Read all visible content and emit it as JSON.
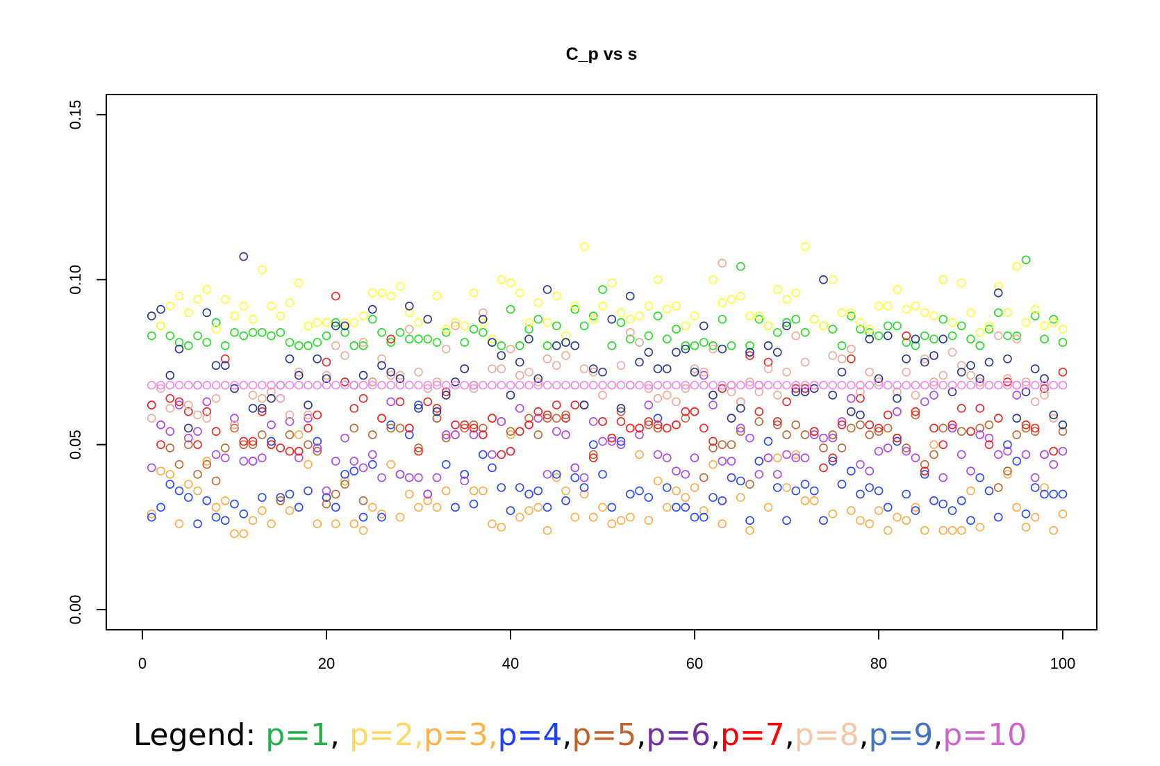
{
  "chart_data": {
    "type": "scatter",
    "title": "C_p vs s",
    "xlabel": "",
    "ylabel": "",
    "xlim": [
      1,
      100
    ],
    "ylim": [
      0.0,
      0.15
    ],
    "x_ticks": [
      0,
      20,
      40,
      60,
      80,
      100
    ],
    "x_tick_labels": [
      "0",
      "20",
      "40",
      "60",
      "80",
      "100"
    ],
    "y_ticks": [
      0.0,
      0.05,
      0.1,
      0.15
    ],
    "y_tick_labels": [
      "0.00",
      "0.05",
      "0.10",
      "0.15"
    ],
    "marker": "open-circle",
    "grid": false,
    "legend_placement": "bottom",
    "series": [
      {
        "name": "p=1",
        "color": "#22dd22",
        "legend_color": "#21b04b",
        "values": [
          0.083,
          0.086,
          0.083,
          0.081,
          0.08,
          0.083,
          0.081,
          0.087,
          0.08,
          0.084,
          0.083,
          0.084,
          0.084,
          0.083,
          0.084,
          0.081,
          0.08,
          0.08,
          0.081,
          0.083,
          0.087,
          0.084,
          0.08,
          0.08,
          0.088,
          0.084,
          0.081,
          0.084,
          0.082,
          0.082,
          0.082,
          0.081,
          0.084,
          0.087,
          0.081,
          0.085,
          0.084,
          0.081,
          0.08,
          0.091,
          0.08,
          0.085,
          0.088,
          0.08,
          0.086,
          0.081,
          0.091,
          0.086,
          0.089,
          0.097,
          0.08,
          0.087,
          0.082,
          0.081,
          0.083,
          0.089,
          0.082,
          0.085,
          0.08,
          0.08,
          0.081,
          0.08,
          0.088,
          0.08,
          0.104,
          0.08,
          0.088,
          0.086,
          0.084,
          0.087,
          0.088,
          0.084,
          0.088,
          0.086,
          0.085,
          0.08,
          0.089,
          0.085,
          0.084,
          0.083,
          0.086,
          0.086,
          0.081,
          0.08,
          0.083,
          0.082,
          0.088,
          0.083,
          0.086,
          0.082,
          0.08,
          0.085,
          0.09,
          0.083,
          0.083,
          0.106,
          0.089,
          0.082,
          0.088,
          0.081
        ]
      },
      {
        "name": "p=2",
        "color": "#ffff33",
        "legend_color": "#ffd966",
        "values": [
          0.089,
          0.086,
          0.092,
          0.095,
          0.09,
          0.094,
          0.097,
          0.085,
          0.094,
          0.089,
          0.092,
          0.088,
          0.103,
          0.092,
          0.089,
          0.093,
          0.099,
          0.086,
          0.087,
          0.087,
          0.086,
          0.087,
          0.087,
          0.089,
          0.096,
          0.096,
          0.095,
          0.098,
          0.09,
          0.087,
          0.088,
          0.095,
          0.085,
          0.087,
          0.086,
          0.096,
          0.087,
          0.082,
          0.1,
          0.099,
          0.096,
          0.087,
          0.093,
          0.087,
          0.095,
          0.083,
          0.092,
          0.11,
          0.088,
          0.092,
          0.099,
          0.09,
          0.088,
          0.089,
          0.092,
          0.1,
          0.091,
          0.092,
          0.086,
          0.089,
          0.086,
          0.1,
          0.093,
          0.094,
          0.095,
          0.089,
          0.089,
          0.086,
          0.097,
          0.094,
          0.096,
          0.11,
          0.088,
          0.086,
          0.1,
          0.09,
          0.09,
          0.087,
          0.085,
          0.092,
          0.092,
          0.097,
          0.091,
          0.092,
          0.09,
          0.089,
          0.1,
          0.087,
          0.099,
          0.09,
          0.084,
          0.086,
          0.098,
          0.09,
          0.104,
          0.087,
          0.091,
          0.086,
          0.087,
          0.085
        ]
      },
      {
        "name": "p=3",
        "color": "#ffaa44",
        "legend_color": "#ffb347",
        "values": [
          0.029,
          0.042,
          0.041,
          0.026,
          0.038,
          0.036,
          0.045,
          0.031,
          0.033,
          0.023,
          0.023,
          0.027,
          0.03,
          0.026,
          0.034,
          0.03,
          0.053,
          0.044,
          0.026,
          0.034,
          0.026,
          0.039,
          0.026,
          0.024,
          0.031,
          0.029,
          0.044,
          0.028,
          0.035,
          0.031,
          0.033,
          0.031,
          0.036,
          0.031,
          0.041,
          0.036,
          0.036,
          0.026,
          0.025,
          0.053,
          0.028,
          0.03,
          0.031,
          0.024,
          0.04,
          0.036,
          0.028,
          0.035,
          0.028,
          0.031,
          0.026,
          0.027,
          0.028,
          0.047,
          0.027,
          0.039,
          0.031,
          0.036,
          0.034,
          0.037,
          0.03,
          0.044,
          0.026,
          0.04,
          0.034,
          0.024,
          0.045,
          0.031,
          0.046,
          0.037,
          0.047,
          0.033,
          0.033,
          0.027,
          0.029,
          0.038,
          0.03,
          0.027,
          0.026,
          0.03,
          0.024,
          0.028,
          0.027,
          0.031,
          0.024,
          0.05,
          0.024,
          0.024,
          0.024,
          0.036,
          0.025,
          0.036,
          0.037,
          0.041,
          0.031,
          0.025,
          0.028,
          0.037,
          0.024,
          0.029
        ]
      },
      {
        "name": "p=4",
        "color": "#2244ff",
        "legend_color": "#1f3fff",
        "values": [
          0.028,
          0.031,
          0.038,
          0.036,
          0.034,
          0.026,
          0.033,
          0.028,
          0.027,
          0.032,
          0.029,
          0.045,
          0.034,
          0.051,
          0.034,
          0.035,
          0.031,
          0.036,
          0.051,
          0.034,
          0.031,
          0.041,
          0.042,
          0.028,
          0.044,
          0.028,
          0.056,
          0.041,
          0.053,
          0.062,
          0.035,
          0.058,
          0.044,
          0.031,
          0.041,
          0.032,
          0.047,
          0.043,
          0.037,
          0.03,
          0.037,
          0.035,
          0.036,
          0.031,
          0.041,
          0.033,
          0.04,
          0.037,
          0.05,
          0.041,
          0.031,
          0.051,
          0.035,
          0.036,
          0.034,
          0.058,
          0.037,
          0.031,
          0.031,
          0.028,
          0.028,
          0.034,
          0.033,
          0.04,
          0.039,
          0.027,
          0.045,
          0.051,
          0.037,
          0.027,
          0.036,
          0.038,
          0.036,
          0.027,
          0.045,
          0.038,
          0.042,
          0.035,
          0.037,
          0.036,
          0.031,
          0.051,
          0.035,
          0.03,
          0.041,
          0.033,
          0.032,
          0.03,
          0.033,
          0.027,
          0.04,
          0.036,
          0.028,
          0.05,
          0.045,
          0.029,
          0.037,
          0.035,
          0.035,
          0.035
        ]
      },
      {
        "name": "p=5",
        "color": "#bb6633",
        "legend_color": "#c0622d",
        "values": [
          0.062,
          0.056,
          0.049,
          0.044,
          0.05,
          0.041,
          0.044,
          0.039,
          0.049,
          0.055,
          0.05,
          0.05,
          0.053,
          0.05,
          0.033,
          0.053,
          0.048,
          0.05,
          0.048,
          0.032,
          0.035,
          0.038,
          0.055,
          0.033,
          0.053,
          0.058,
          0.055,
          0.055,
          0.055,
          0.049,
          0.035,
          0.058,
          0.052,
          0.053,
          0.055,
          0.056,
          0.055,
          0.058,
          0.057,
          0.054,
          0.054,
          0.058,
          0.053,
          0.058,
          0.058,
          0.059,
          0.043,
          0.062,
          0.047,
          0.057,
          0.052,
          0.06,
          0.055,
          0.055,
          0.056,
          0.055,
          0.055,
          0.056,
          0.058,
          0.06,
          0.04,
          0.049,
          0.05,
          0.05,
          0.054,
          0.038,
          0.057,
          0.046,
          0.056,
          0.053,
          0.056,
          0.053,
          0.054,
          0.049,
          0.053,
          0.049,
          0.055,
          0.056,
          0.053,
          0.054,
          0.055,
          0.052,
          0.049,
          0.059,
          0.044,
          0.047,
          0.055,
          0.055,
          0.054,
          0.054,
          0.055,
          0.056,
          0.037,
          0.042,
          0.053,
          0.055,
          0.054,
          0.047,
          0.048,
          0.054
        ]
      },
      {
        "name": "p=6",
        "color": "#aa44ee",
        "legend_color": "#7030a0",
        "values": [
          0.043,
          0.056,
          0.054,
          0.062,
          0.052,
          0.054,
          0.063,
          0.047,
          0.046,
          0.058,
          0.045,
          0.045,
          0.046,
          0.056,
          0.064,
          0.057,
          0.046,
          0.058,
          0.049,
          0.036,
          0.045,
          0.052,
          0.045,
          0.043,
          0.047,
          0.04,
          0.063,
          0.041,
          0.04,
          0.04,
          0.035,
          0.04,
          0.053,
          0.053,
          0.039,
          0.053,
          0.053,
          0.047,
          0.057,
          0.048,
          0.061,
          0.056,
          0.058,
          0.041,
          0.054,
          0.053,
          0.043,
          0.04,
          0.057,
          0.051,
          0.051,
          0.05,
          0.068,
          0.053,
          0.062,
          0.047,
          0.046,
          0.042,
          0.041,
          0.046,
          0.071,
          0.062,
          0.045,
          0.045,
          0.055,
          0.052,
          0.041,
          0.046,
          0.041,
          0.047,
          0.046,
          0.046,
          0.053,
          0.052,
          0.052,
          0.057,
          0.064,
          0.044,
          0.042,
          0.048,
          0.049,
          0.06,
          0.048,
          0.046,
          0.063,
          0.065,
          0.04,
          0.055,
          0.047,
          0.042,
          0.053,
          0.052,
          0.047,
          0.048,
          0.065,
          0.047,
          0.04,
          0.047,
          0.044,
          0.048
        ]
      },
      {
        "name": "p=7",
        "color": "#ee2222",
        "legend_color": "#ff0000",
        "values": [
          0.062,
          0.05,
          0.064,
          0.063,
          0.06,
          0.05,
          0.06,
          0.054,
          0.076,
          0.056,
          0.051,
          0.051,
          0.06,
          0.05,
          0.049,
          0.048,
          0.048,
          0.055,
          0.059,
          0.075,
          0.095,
          0.069,
          0.061,
          0.064,
          0.069,
          0.058,
          0.082,
          0.063,
          0.055,
          0.048,
          0.063,
          0.061,
          0.066,
          0.056,
          0.056,
          0.055,
          0.053,
          0.058,
          0.047,
          0.048,
          0.054,
          0.056,
          0.06,
          0.059,
          0.062,
          0.058,
          0.062,
          0.062,
          0.046,
          0.057,
          0.052,
          0.057,
          0.055,
          0.055,
          0.057,
          0.056,
          0.055,
          0.056,
          0.06,
          0.06,
          0.055,
          0.051,
          0.067,
          0.068,
          0.063,
          0.077,
          0.06,
          0.075,
          0.057,
          0.063,
          0.067,
          0.067,
          0.054,
          0.043,
          0.046,
          0.056,
          0.076,
          0.064,
          0.056,
          0.055,
          0.059,
          0.052,
          0.083,
          0.06,
          0.042,
          0.055,
          0.05,
          0.056,
          0.061,
          0.054,
          0.061,
          0.05,
          0.058,
          0.069,
          0.068,
          0.056,
          0.055,
          0.067,
          0.048,
          0.072
        ]
      },
      {
        "name": "p=8",
        "color": "#f0a898",
        "legend_color": "#f4c7a8",
        "values": [
          0.058,
          0.067,
          0.061,
          0.079,
          0.062,
          0.059,
          0.058,
          0.064,
          0.068,
          0.056,
          0.068,
          0.065,
          0.064,
          0.066,
          0.064,
          0.059,
          0.072,
          0.059,
          0.068,
          0.071,
          0.08,
          0.077,
          0.068,
          0.081,
          0.069,
          0.076,
          0.071,
          0.071,
          0.085,
          0.072,
          0.067,
          0.069,
          0.079,
          0.086,
          0.073,
          0.067,
          0.09,
          0.073,
          0.073,
          0.079,
          0.071,
          0.072,
          0.069,
          0.076,
          0.074,
          0.077,
          0.068,
          0.073,
          0.072,
          0.065,
          0.068,
          0.074,
          0.084,
          0.081,
          0.067,
          0.064,
          0.065,
          0.063,
          0.067,
          0.073,
          0.072,
          0.079,
          0.105,
          0.066,
          0.063,
          0.069,
          0.066,
          0.073,
          0.065,
          0.072,
          0.083,
          0.075,
          0.068,
          0.068,
          0.077,
          0.076,
          0.079,
          0.066,
          0.072,
          0.069,
          0.068,
          0.066,
          0.072,
          0.065,
          0.076,
          0.069,
          0.071,
          0.078,
          0.074,
          0.071,
          0.069,
          0.068,
          0.083,
          0.07,
          0.082,
          0.069,
          0.063,
          0.065,
          0.058,
          0.068
        ]
      },
      {
        "name": "p=9",
        "color": "#223388",
        "legend_color": "#4472c4",
        "values": [
          0.089,
          0.091,
          0.071,
          0.079,
          0.055,
          0.068,
          0.09,
          0.074,
          0.074,
          0.067,
          0.107,
          0.061,
          0.061,
          0.064,
          0.068,
          0.076,
          0.071,
          0.062,
          0.076,
          0.07,
          0.086,
          0.086,
          0.068,
          0.071,
          0.091,
          0.074,
          0.072,
          0.07,
          0.092,
          0.061,
          0.088,
          0.06,
          0.065,
          0.069,
          0.073,
          0.068,
          0.088,
          0.081,
          0.077,
          0.065,
          0.075,
          0.082,
          0.07,
          0.097,
          0.08,
          0.081,
          0.08,
          0.062,
          0.073,
          0.072,
          0.088,
          0.061,
          0.095,
          0.075,
          0.078,
          0.073,
          0.073,
          0.078,
          0.079,
          0.072,
          0.086,
          0.065,
          0.079,
          0.058,
          0.061,
          0.078,
          0.068,
          0.08,
          0.078,
          0.086,
          0.066,
          0.066,
          0.067,
          0.1,
          0.065,
          0.072,
          0.06,
          0.059,
          0.082,
          0.07,
          0.083,
          0.064,
          0.076,
          0.082,
          0.075,
          0.077,
          0.082,
          0.066,
          0.072,
          0.074,
          0.07,
          0.075,
          0.096,
          0.076,
          0.058,
          0.066,
          0.073,
          0.07,
          0.059,
          0.056
        ]
      },
      {
        "name": "p=10",
        "color": "#ee88ee",
        "legend_color": "#cc66cc",
        "values": [
          0.068,
          0.068,
          0.068,
          0.068,
          0.068,
          0.068,
          0.068,
          0.068,
          0.068,
          0.068,
          0.068,
          0.068,
          0.068,
          0.068,
          0.068,
          0.068,
          0.068,
          0.068,
          0.068,
          0.068,
          0.068,
          0.068,
          0.068,
          0.068,
          0.068,
          0.068,
          0.068,
          0.068,
          0.068,
          0.068,
          0.068,
          0.068,
          0.068,
          0.068,
          0.068,
          0.068,
          0.068,
          0.068,
          0.068,
          0.068,
          0.068,
          0.068,
          0.068,
          0.068,
          0.068,
          0.068,
          0.068,
          0.068,
          0.068,
          0.068,
          0.068,
          0.068,
          0.068,
          0.068,
          0.068,
          0.068,
          0.068,
          0.068,
          0.068,
          0.068,
          0.068,
          0.068,
          0.068,
          0.068,
          0.068,
          0.068,
          0.068,
          0.068,
          0.068,
          0.068,
          0.068,
          0.068,
          0.068,
          0.068,
          0.068,
          0.068,
          0.068,
          0.068,
          0.068,
          0.068,
          0.068,
          0.068,
          0.068,
          0.068,
          0.068,
          0.068,
          0.068,
          0.068,
          0.068,
          0.068,
          0.068,
          0.068,
          0.068,
          0.068,
          0.068,
          0.068,
          0.068,
          0.068,
          0.068,
          0.068
        ]
      }
    ]
  },
  "legend": {
    "prefix": "Legend: ",
    "items": [
      {
        "label": "p=1",
        "color": "#21b04b",
        "sep": ", "
      },
      {
        "label": "p=2,",
        "color": "#ffd966",
        "sep": ""
      },
      {
        "label": "p=3,",
        "color": "#ffb347",
        "sep": ""
      },
      {
        "label": "p=4",
        "color": "#1f3fff",
        "sep": ","
      },
      {
        "label": "p=5",
        "color": "#c0622d",
        "sep": ","
      },
      {
        "label": "p=6",
        "color": "#7030a0",
        "sep": ","
      },
      {
        "label": "p=7",
        "color": "#ff0000",
        "sep": ","
      },
      {
        "label": "p=8",
        "color": "#f4c7a8",
        "sep": ","
      },
      {
        "label": "p=9",
        "color": "#4472c4",
        "sep": ","
      },
      {
        "label": "p=10",
        "color": "#cc66cc",
        "sep": ""
      }
    ]
  }
}
